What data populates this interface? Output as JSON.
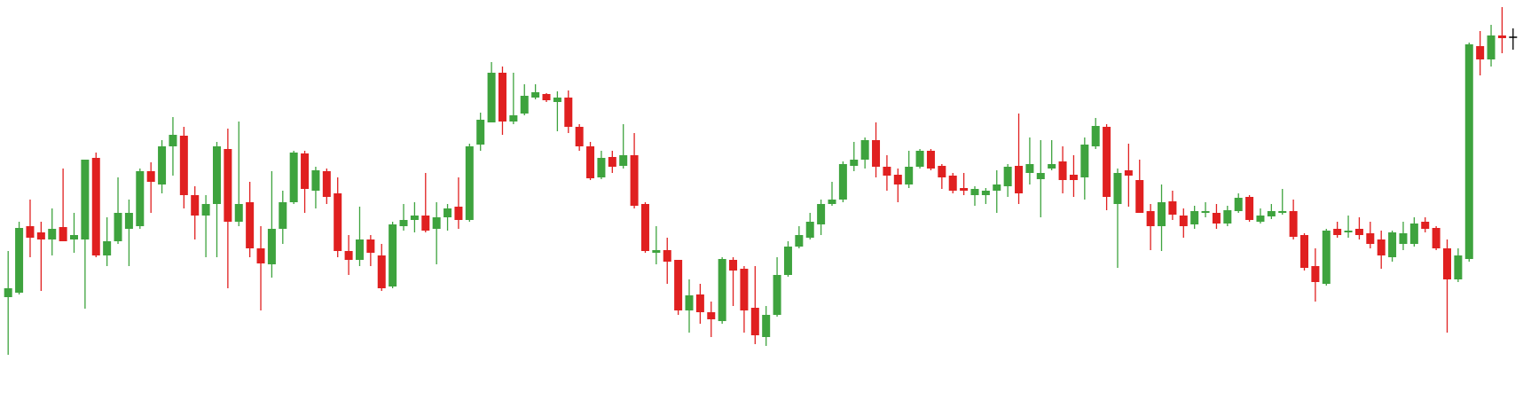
{
  "chart_data": {
    "type": "candlestick",
    "up_color": "#3ea33e",
    "down_color": "#e02020",
    "flat_color": "#000000",
    "ylim": [
      0,
      460
    ],
    "open": [
      125,
      130,
      205,
      198,
      190,
      204,
      190,
      190,
      282,
      172,
      188,
      202,
      205,
      267,
      252,
      295,
      307,
      240,
      217,
      230,
      292,
      210,
      232,
      180,
      162,
      202,
      232,
      287,
      245,
      267,
      242,
      177,
      167,
      190,
      172,
      137,
      205,
      212,
      217,
      202,
      215,
      227,
      212,
      297,
      322,
      378,
      323,
      332,
      350,
      354,
      345,
      350,
      317,
      295,
      260,
      283,
      273,
      285,
      230,
      175,
      178,
      167,
      110,
      128,
      108,
      98,
      167,
      157,
      113,
      80,
      105,
      150,
      182,
      192,
      207,
      230,
      235,
      273,
      280,
      302,
      272,
      263,
      252,
      272,
      290,
      273,
      262,
      248,
      240,
      240,
      245,
      250,
      273,
      265,
      258,
      270,
      278,
      263,
      260,
      295,
      317,
      230,
      268,
      257,
      222,
      205,
      233,
      217,
      207,
      220,
      220,
      208,
      222,
      238,
      210,
      216,
      220,
      222,
      195,
      160,
      140,
      202,
      198,
      202,
      197,
      190,
      170,
      185,
      185,
      210,
      203,
      180,
      145,
      168,
      408,
      393,
      420,
      418
    ],
    "high": [
      177,
      210,
      235,
      210,
      225,
      270,
      220,
      280,
      288,
      215,
      260,
      235,
      270,
      277,
      302,
      328,
      317,
      250,
      240,
      300,
      315,
      323,
      255,
      205,
      267,
      245,
      290,
      290,
      272,
      270,
      260,
      195,
      227,
      195,
      185,
      210,
      230,
      232,
      265,
      232,
      230,
      260,
      298,
      333,
      390,
      385,
      378,
      365,
      365,
      355,
      357,
      358,
      320,
      300,
      290,
      290,
      320,
      310,
      232,
      205,
      192,
      167,
      145,
      140,
      120,
      170,
      170,
      160,
      160,
      115,
      170,
      188,
      205,
      220,
      235,
      255,
      278,
      300,
      305,
      322,
      285,
      270,
      290,
      292,
      292,
      275,
      265,
      265,
      250,
      248,
      268,
      275,
      332,
      305,
      302,
      302,
      295,
      285,
      305,
      327,
      320,
      270,
      298,
      280,
      230,
      252,
      245,
      225,
      228,
      232,
      230,
      228,
      242,
      240,
      225,
      230,
      247,
      235,
      197,
      180,
      202,
      210,
      217,
      215,
      210,
      200,
      200,
      210,
      215,
      215,
      205,
      190,
      180,
      412,
      425,
      432,
      452,
      428
    ],
    "low": [
      60,
      128,
      170,
      132,
      172,
      188,
      175,
      112,
      170,
      160,
      185,
      160,
      202,
      220,
      242,
      262,
      225,
      190,
      170,
      170,
      135,
      205,
      170,
      110,
      147,
      185,
      230,
      220,
      225,
      230,
      170,
      150,
      160,
      160,
      132,
      135,
      200,
      198,
      198,
      162,
      200,
      202,
      210,
      290,
      322,
      308,
      320,
      330,
      348,
      345,
      312,
      310,
      290,
      257,
      258,
      265,
      270,
      225,
      175,
      162,
      140,
      105,
      85,
      95,
      80,
      95,
      115,
      85,
      72,
      70,
      103,
      148,
      180,
      190,
      195,
      228,
      232,
      267,
      270,
      260,
      245,
      232,
      248,
      270,
      268,
      247,
      242,
      240,
      228,
      230,
      220,
      238,
      230,
      252,
      215,
      268,
      242,
      238,
      235,
      292,
      223,
      158,
      227,
      220,
      178,
      177,
      212,
      192,
      202,
      215,
      202,
      205,
      220,
      210,
      208,
      213,
      218,
      190,
      155,
      120,
      138,
      192,
      192,
      190,
      180,
      157,
      165,
      178,
      182,
      198,
      178,
      85,
      142,
      165,
      375,
      385,
      400,
      404
    ],
    "close": [
      135,
      203,
      192,
      190,
      202,
      188,
      195,
      280,
      172,
      188,
      220,
      220,
      267,
      255,
      295,
      308,
      240,
      217,
      230,
      295,
      210,
      230,
      180,
      163,
      202,
      232,
      288,
      247,
      268,
      238,
      177,
      167,
      190,
      175,
      135,
      207,
      212,
      217,
      200,
      215,
      225,
      212,
      295,
      325,
      378,
      323,
      330,
      352,
      356,
      347,
      350,
      317,
      295,
      259,
      282,
      272,
      285,
      228,
      177,
      178,
      165,
      110,
      127,
      108,
      100,
      168,
      155,
      110,
      82,
      105,
      150,
      182,
      195,
      210,
      230,
      235,
      275,
      280,
      302,
      272,
      262,
      252,
      272,
      290,
      270,
      260,
      245,
      245,
      247,
      245,
      252,
      272,
      242,
      275,
      265,
      275,
      257,
      257,
      297,
      318,
      238,
      265,
      262,
      220,
      205,
      232,
      218,
      205,
      222,
      222,
      208,
      223,
      237,
      212,
      217,
      222,
      222,
      193,
      158,
      142,
      200,
      195,
      200,
      195,
      185,
      172,
      198,
      197,
      208,
      202,
      180,
      145,
      172,
      410,
      393,
      420,
      417,
      418
    ]
  }
}
